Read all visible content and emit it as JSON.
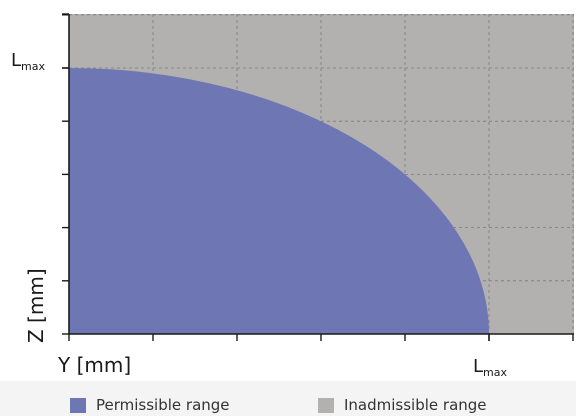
{
  "chart_data": {
    "type": "area",
    "title": "",
    "xlabel": "Y [mm]",
    "ylabel": "Z [mm]",
    "x_max_label_main": "L",
    "x_max_label_sub": "max",
    "y_max_label_main": "L",
    "y_max_label_sub": "max",
    "xlim": [
      0,
      1.2
    ],
    "ylim": [
      0,
      1.2
    ],
    "grid": true,
    "legend_position": "bottom",
    "series": [
      {
        "name": "Permissible range",
        "color": "#6f76b4",
        "shape": "quarter-ellipse",
        "x": [
          0,
          0.5,
          0.7,
          0.866,
          0.95,
          1.0
        ],
        "y": [
          1.0,
          0.866,
          0.714,
          0.5,
          0.312,
          0
        ]
      },
      {
        "name": "Inadmissible range",
        "color": "#b3b0b0",
        "shape": "remaining-area"
      }
    ]
  },
  "legend": {
    "items": [
      {
        "label": "Permissible range",
        "color": "#6f76b4"
      },
      {
        "label": "Inadmissible range",
        "color": "#b3b0b0"
      }
    ]
  }
}
